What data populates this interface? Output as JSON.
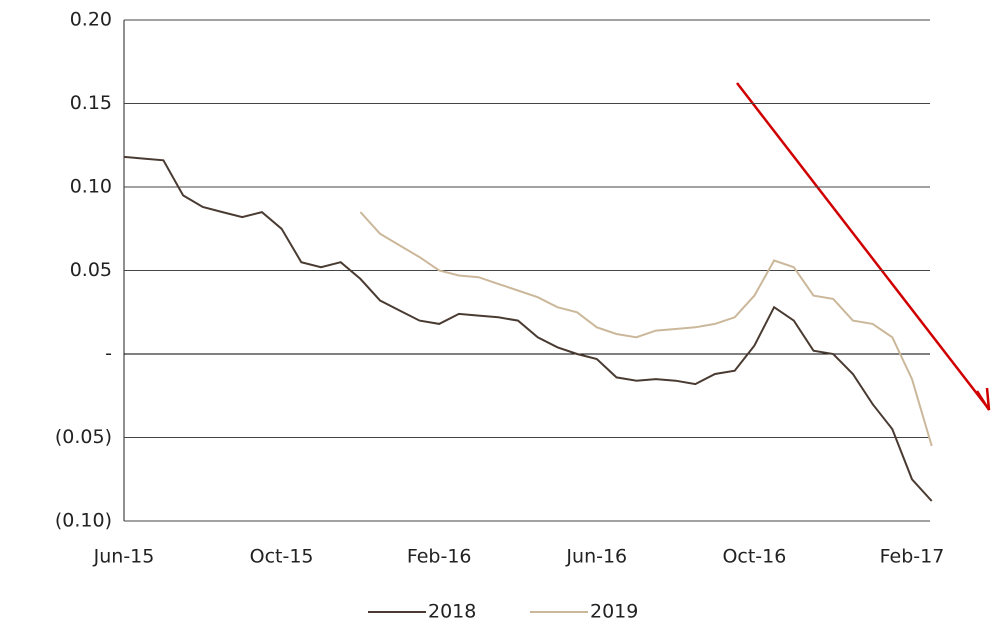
{
  "chart_data": {
    "type": "line",
    "categories": [
      "Jun-15",
      null,
      null,
      null,
      null,
      null,
      null,
      null,
      "Oct-15",
      null,
      null,
      null,
      null,
      null,
      null,
      null,
      "Feb-16",
      null,
      null,
      null,
      null,
      null,
      null,
      null,
      "Jun-16",
      null,
      null,
      null,
      null,
      null,
      null,
      null,
      "Oct-16",
      null,
      null,
      null,
      null,
      null,
      null,
      null,
      "Feb-17",
      null
    ],
    "series": [
      {
        "name": "2018",
        "color": "#4a3b32",
        "values": [
          0.118,
          0.117,
          0.116,
          0.095,
          0.088,
          0.085,
          0.082,
          0.085,
          0.075,
          0.055,
          0.052,
          0.055,
          0.045,
          0.032,
          0.026,
          0.02,
          0.018,
          0.024,
          0.023,
          0.022,
          0.02,
          0.01,
          0.004,
          0.0,
          -0.003,
          -0.014,
          -0.016,
          -0.015,
          -0.016,
          -0.018,
          -0.012,
          -0.01,
          0.005,
          0.028,
          0.02,
          0.002,
          0.0,
          -0.012,
          -0.03,
          -0.045,
          -0.075,
          -0.088
        ]
      },
      {
        "name": "2019",
        "color": "#cbb89b",
        "values": [
          null,
          null,
          null,
          null,
          null,
          null,
          null,
          null,
          null,
          null,
          null,
          null,
          0.085,
          0.072,
          0.065,
          0.058,
          0.05,
          0.047,
          0.046,
          0.042,
          0.038,
          0.034,
          0.028,
          0.025,
          0.016,
          0.012,
          0.01,
          0.014,
          0.015,
          0.016,
          0.018,
          0.022,
          0.035,
          0.056,
          0.052,
          0.035,
          0.033,
          0.02,
          0.018,
          0.01,
          -0.015,
          -0.055
        ]
      }
    ],
    "ylim": [
      -0.1,
      0.2
    ],
    "yticks": [
      {
        "value": 0.2,
        "label": "0.20"
      },
      0.15,
      {
        "value": 0.1,
        "label": "0.10"
      },
      0.05,
      {
        "value": 0,
        "label": "-"
      },
      {
        "value": -0.05,
        "label": "(0.05)"
      },
      {
        "value": -0.1,
        "label": "(0.10)"
      }
    ],
    "grid": true
  }
}
